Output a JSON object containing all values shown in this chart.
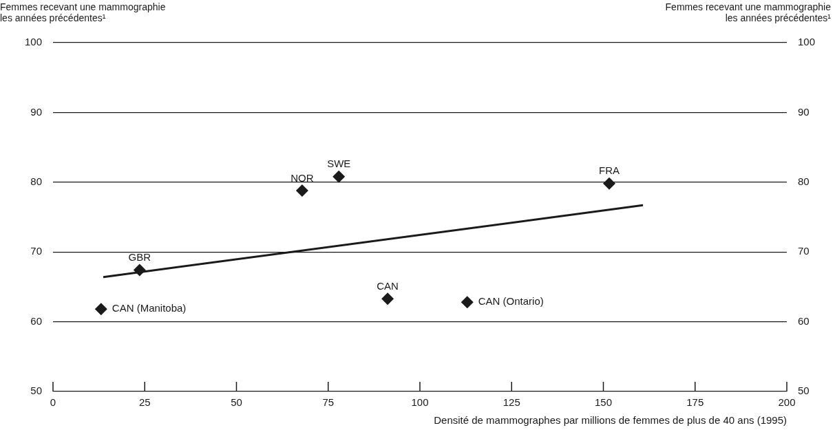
{
  "chart_data": {
    "type": "scatter",
    "xlabel": "Densité de mammographes par millions de femmes de plus de 40 ans (1995)",
    "ylabel": "Femmes recevant une mammographie\nles années précédentes¹",
    "y2label": "Femmes recevant une mammographie\nles années précédentes¹",
    "xlim": [
      0,
      200
    ],
    "xticks": [
      0,
      25,
      50,
      75,
      100,
      125,
      150,
      175,
      200
    ],
    "ylim": [
      50,
      100
    ],
    "yticks": [
      50,
      60,
      70,
      80,
      90,
      100
    ],
    "y2lim": [
      50,
      100
    ],
    "y2ticks": [
      50,
      60,
      70,
      80,
      90,
      100
    ],
    "grid": "y",
    "legend": false,
    "marker": "diamond",
    "series": [
      {
        "color": "#1a1a1a",
        "x": [
          13.1,
          23.6,
          67.9,
          77.9,
          91.2,
          112.9,
          151.6
        ],
        "values": [
          61.8,
          67.4,
          78.8,
          80.8,
          63.3,
          62.8,
          79.8
        ]
      },
      {
        "type": "line",
        "color": "#1a1a1a",
        "line_style": "solid",
        "marker": "none",
        "x": [
          13.7,
          160.8
        ],
        "values": [
          66.4,
          76.7
        ]
      }
    ],
    "annotations": [
      {
        "text": "CAN (Manitoba)",
        "x": 13.1,
        "y": 61.8
      },
      {
        "text": "GBR",
        "x": 23.6,
        "y": 67.4
      },
      {
        "text": "NOR",
        "x": 67.9,
        "y": 78.8
      },
      {
        "text": "SWE",
        "x": 77.9,
        "y": 80.8
      },
      {
        "text": "CAN",
        "x": 91.2,
        "y": 63.3
      },
      {
        "text": "CAN (Ontario)",
        "x": 112.9,
        "y": 62.8
      },
      {
        "text": "FRA",
        "x": 151.6,
        "y": 79.8
      }
    ]
  }
}
